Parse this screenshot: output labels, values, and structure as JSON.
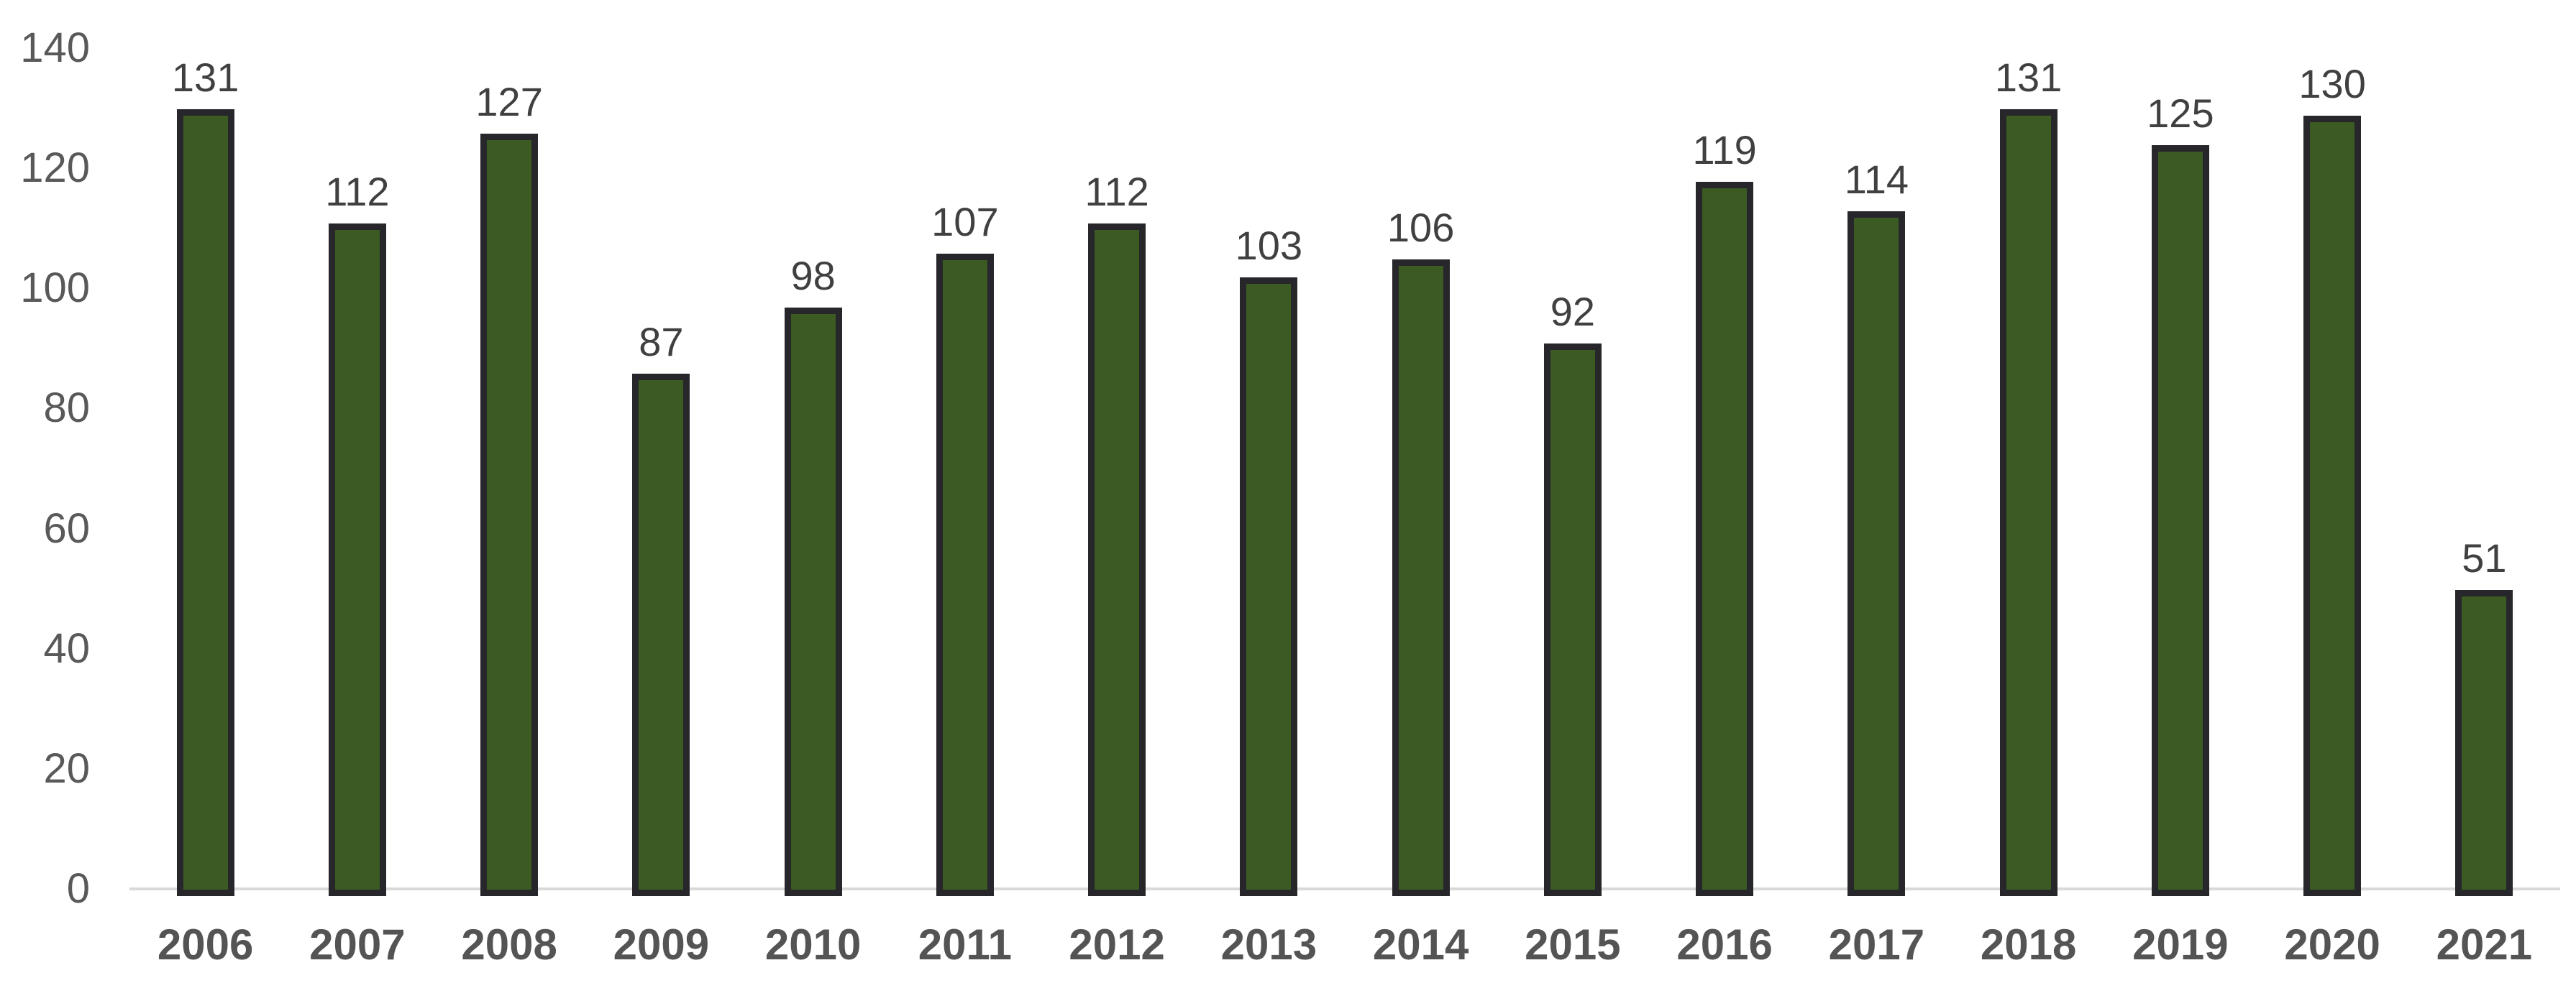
{
  "chart_data": {
    "type": "bar",
    "title": "",
    "xlabel": "",
    "ylabel": "",
    "categories": [
      "2006",
      "2007",
      "2008",
      "2009",
      "2010",
      "2011",
      "2012",
      "2013",
      "2014",
      "2015",
      "2016",
      "2017",
      "2018",
      "2019",
      "2020",
      "2021"
    ],
    "values": [
      131,
      112,
      127,
      87,
      98,
      107,
      112,
      103,
      106,
      92,
      119,
      114,
      131,
      125,
      130,
      51
    ],
    "ylim": [
      0,
      140
    ],
    "yticks": [
      0,
      20,
      40,
      60,
      80,
      100,
      120,
      140
    ],
    "grid": false,
    "legend_position": "none",
    "data_labels": true,
    "colors": {
      "bar_fill": "#3B5B23",
      "bar_border": "#26262B",
      "axis_line": "#D9D9D9",
      "tick_label": "#595959",
      "value_label": "#404040",
      "category_label": "#545454",
      "background": "#FFFFFF"
    }
  }
}
